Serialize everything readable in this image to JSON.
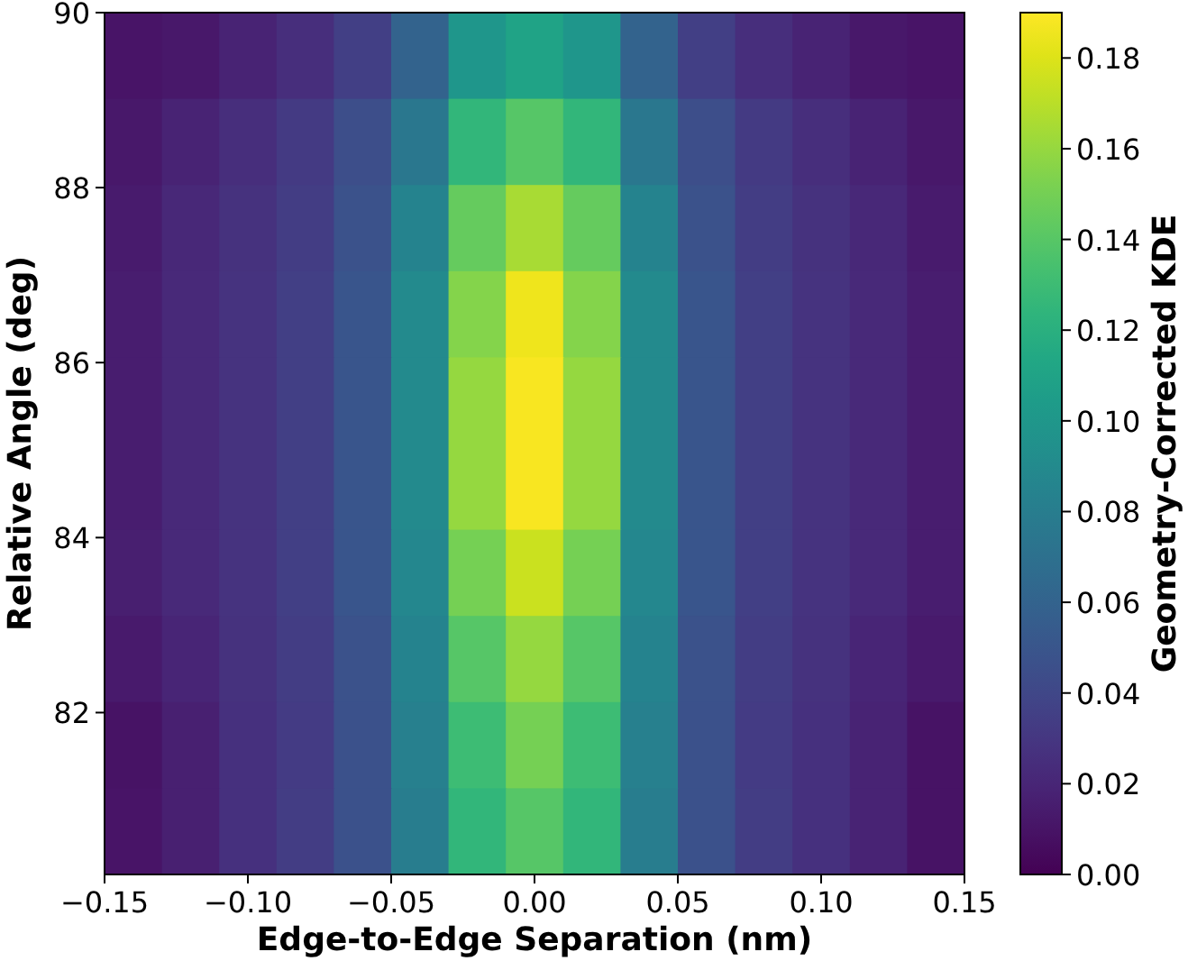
{
  "chart_data": {
    "type": "heatmap",
    "xlabel": "Edge-to-Edge Separation (nm)",
    "ylabel": "Relative Angle (deg)",
    "clabel": "Geometry-Corrected KDE",
    "xlim": [
      -0.15,
      0.15
    ],
    "xticks": [
      {
        "value": -0.15,
        "label": "−0.15"
      },
      {
        "value": -0.1,
        "label": "−0.10"
      },
      {
        "value": -0.05,
        "label": "−0.05"
      },
      {
        "value": 0,
        "label": "0.00"
      },
      {
        "value": 0.05,
        "label": "0.05"
      },
      {
        "value": 0.1,
        "label": "0.10"
      },
      {
        "value": 0.15,
        "label": "0.15"
      }
    ],
    "ylim": [
      80.15,
      90
    ],
    "yticks": [
      82,
      84,
      86,
      88,
      90
    ],
    "clim": [
      0,
      0.19
    ],
    "cticks": [
      {
        "value": 0,
        "label": "0.00"
      },
      {
        "value": 0.02,
        "label": "0.02"
      },
      {
        "value": 0.04,
        "label": "0.04"
      },
      {
        "value": 0.06,
        "label": "0.06"
      },
      {
        "value": 0.08,
        "label": "0.08"
      },
      {
        "value": 0.1,
        "label": "0.10"
      },
      {
        "value": 0.12,
        "label": "0.12"
      },
      {
        "value": 0.14,
        "label": "0.14"
      },
      {
        "value": 0.16,
        "label": "0.16"
      },
      {
        "value": 0.18,
        "label": "0.18"
      }
    ],
    "cells": [
      [
        0.01,
        0.012,
        0.018,
        0.025,
        0.035,
        0.06,
        0.1,
        0.11,
        0.1,
        0.06,
        0.035,
        0.025,
        0.018,
        0.012,
        0.01
      ],
      [
        0.012,
        0.018,
        0.025,
        0.032,
        0.045,
        0.075,
        0.125,
        0.14,
        0.125,
        0.075,
        0.045,
        0.032,
        0.025,
        0.018,
        0.012
      ],
      [
        0.014,
        0.021,
        0.027,
        0.034,
        0.048,
        0.085,
        0.145,
        0.165,
        0.145,
        0.085,
        0.048,
        0.034,
        0.027,
        0.021,
        0.014
      ],
      [
        0.015,
        0.022,
        0.028,
        0.035,
        0.05,
        0.09,
        0.155,
        0.185,
        0.155,
        0.09,
        0.05,
        0.035,
        0.028,
        0.022,
        0.015
      ],
      [
        0.015,
        0.022,
        0.028,
        0.035,
        0.05,
        0.09,
        0.16,
        0.188,
        0.16,
        0.09,
        0.05,
        0.035,
        0.028,
        0.022,
        0.015
      ],
      [
        0.015,
        0.022,
        0.028,
        0.035,
        0.05,
        0.09,
        0.16,
        0.188,
        0.16,
        0.09,
        0.05,
        0.035,
        0.028,
        0.022,
        0.015
      ],
      [
        0.016,
        0.022,
        0.028,
        0.035,
        0.05,
        0.088,
        0.15,
        0.175,
        0.15,
        0.088,
        0.05,
        0.035,
        0.028,
        0.022,
        0.015
      ],
      [
        0.013,
        0.02,
        0.027,
        0.034,
        0.048,
        0.085,
        0.14,
        0.16,
        0.14,
        0.085,
        0.048,
        0.034,
        0.027,
        0.02,
        0.013
      ],
      [
        0.009,
        0.017,
        0.026,
        0.033,
        0.047,
        0.082,
        0.13,
        0.15,
        0.13,
        0.082,
        0.047,
        0.033,
        0.026,
        0.018,
        0.009
      ],
      [
        0.01,
        0.017,
        0.026,
        0.034,
        0.047,
        0.08,
        0.125,
        0.14,
        0.125,
        0.08,
        0.047,
        0.034,
        0.026,
        0.018,
        0.009
      ]
    ]
  }
}
